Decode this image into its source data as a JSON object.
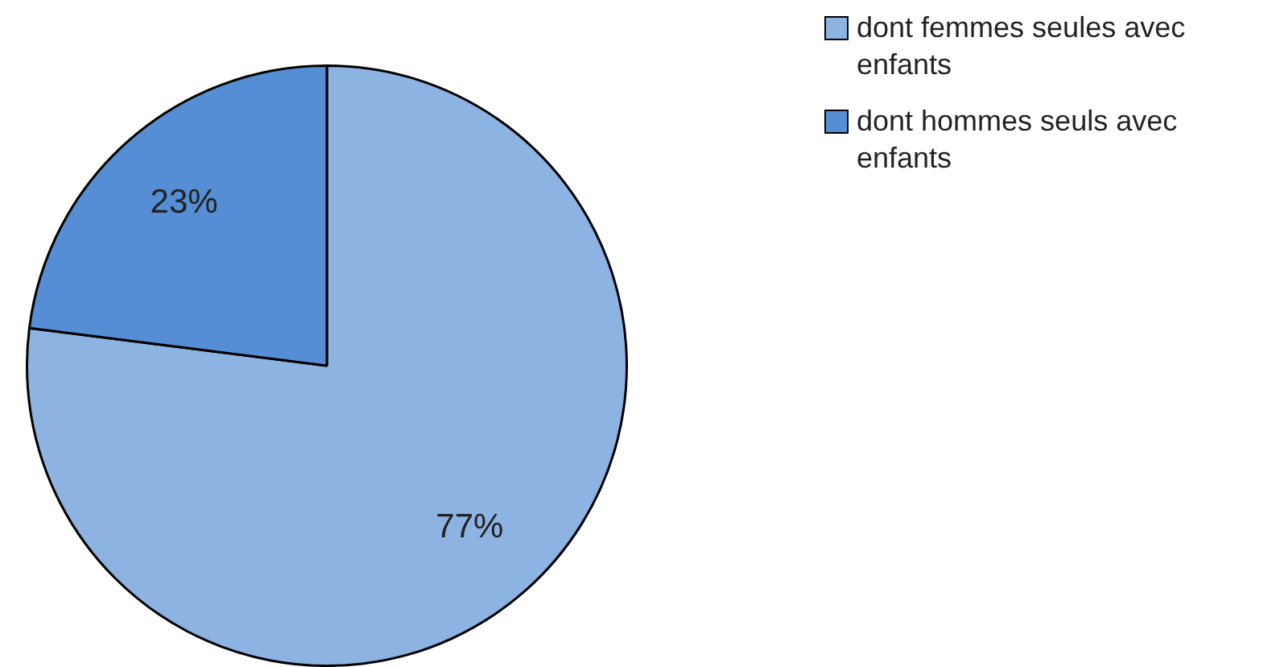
{
  "chart_data": {
    "type": "pie",
    "categories": [
      "dont femmes seules avec enfants",
      "dont hommes seuls avec enfants"
    ],
    "values": [
      77,
      23
    ],
    "colors": [
      "#8db3e2",
      "#558ed5"
    ],
    "value_labels": [
      "77%",
      "23%"
    ],
    "legend": "top right"
  }
}
